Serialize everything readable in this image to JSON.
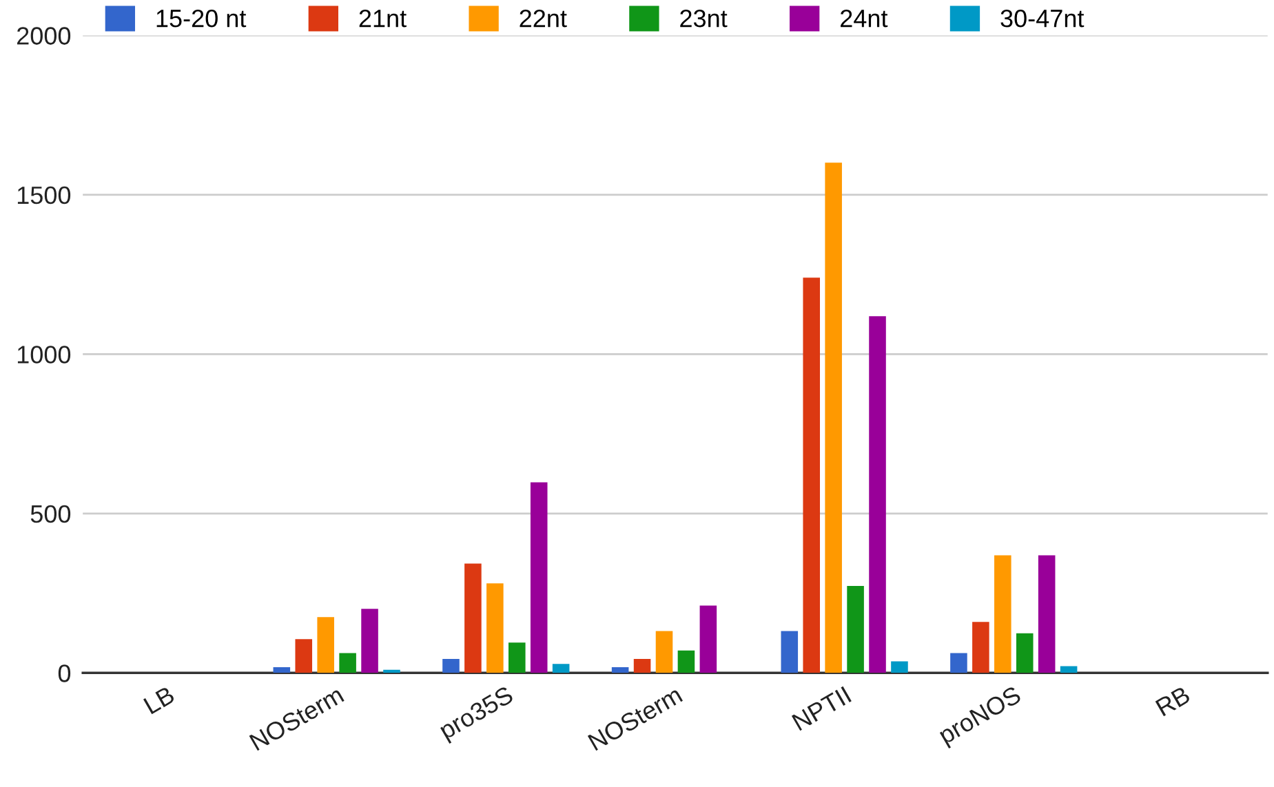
{
  "chart_data": {
    "type": "bar",
    "categories": [
      "LB",
      "NOSterm",
      "pro35S",
      "NOSterm",
      "NPTII",
      "proNOS",
      "RB"
    ],
    "series": [
      {
        "name": "15-20 nt",
        "color": "#3366cc",
        "values": [
          0,
          18,
          44,
          18,
          131,
          62,
          0
        ]
      },
      {
        "name": "21nt",
        "color": "#dc3912",
        "values": [
          0,
          106,
          343,
          44,
          1240,
          160,
          0
        ]
      },
      {
        "name": "22nt",
        "color": "#ff9900",
        "values": [
          0,
          175,
          281,
          131,
          1601,
          369,
          0
        ]
      },
      {
        "name": "23nt",
        "color": "#109618",
        "values": [
          0,
          62,
          95,
          70,
          273,
          124,
          0
        ]
      },
      {
        "name": "24nt",
        "color": "#990099",
        "values": [
          0,
          201,
          598,
          211,
          1119,
          369,
          0
        ]
      },
      {
        "name": "30-47nt",
        "color": "#0099c6",
        "values": [
          0,
          10,
          28,
          0,
          36,
          21,
          0
        ]
      }
    ],
    "ylim": [
      0,
      2000
    ],
    "yticks": [
      0,
      500,
      1000,
      1500,
      2000
    ],
    "grid": "y",
    "legend": "top left"
  }
}
